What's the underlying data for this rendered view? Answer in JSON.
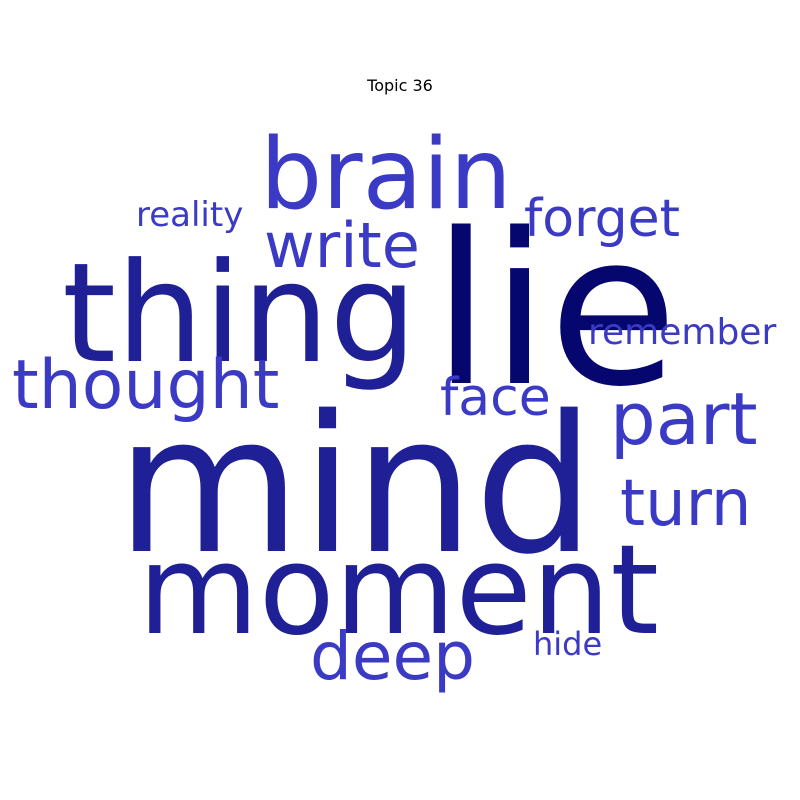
{
  "title": "Topic 36",
  "colors": {
    "dark": "#06066f",
    "mid": "#1f1f96",
    "light": "#3a3ac4"
  },
  "words": [
    {
      "text": "mind",
      "weight": 1.0,
      "tone": "mid"
    },
    {
      "text": "lie",
      "weight": 0.95,
      "tone": "dark"
    },
    {
      "text": "thing",
      "weight": 0.75,
      "tone": "mid"
    },
    {
      "text": "moment",
      "weight": 0.72,
      "tone": "mid"
    },
    {
      "text": "brain",
      "weight": 0.55,
      "tone": "light"
    },
    {
      "text": "thought",
      "weight": 0.42,
      "tone": "light"
    },
    {
      "text": "part",
      "weight": 0.42,
      "tone": "light"
    },
    {
      "text": "turn",
      "weight": 0.42,
      "tone": "light"
    },
    {
      "text": "deep",
      "weight": 0.42,
      "tone": "light"
    },
    {
      "text": "write",
      "weight": 0.4,
      "tone": "light"
    },
    {
      "text": "face",
      "weight": 0.35,
      "tone": "light"
    },
    {
      "text": "forget",
      "weight": 0.35,
      "tone": "light"
    },
    {
      "text": "remember",
      "weight": 0.25,
      "tone": "light"
    },
    {
      "text": "reality",
      "weight": 0.23,
      "tone": "light"
    },
    {
      "text": "hide",
      "weight": 0.23,
      "tone": "light"
    }
  ]
}
